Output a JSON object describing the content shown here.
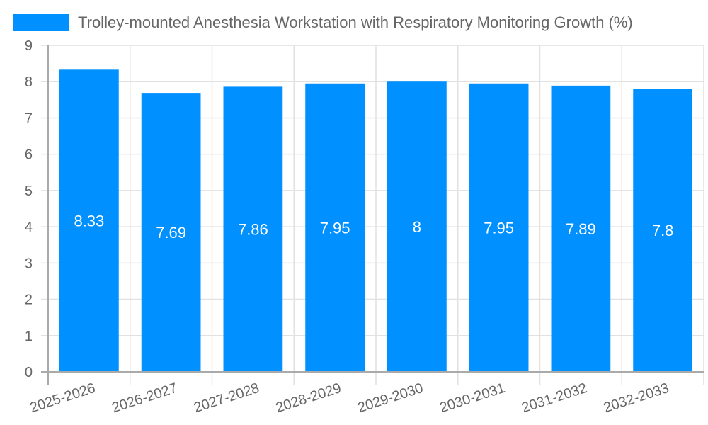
{
  "legend": {
    "label": "Trolley-mounted Anesthesia Workstation with Respiratory Monitoring Growth (%)",
    "color": "#0090ff"
  },
  "chart_data": {
    "type": "bar",
    "title": "",
    "categories": [
      "2025-2026",
      "2026-2027",
      "2027-2028",
      "2028-2029",
      "2029-2030",
      "2030-2031",
      "2031-2032",
      "2032-2033"
    ],
    "series": [
      {
        "name": "Trolley-mounted Anesthesia Workstation with Respiratory Monitoring Growth (%)",
        "values": [
          8.33,
          7.69,
          7.86,
          7.95,
          8,
          7.95,
          7.89,
          7.8
        ],
        "labels": [
          "8.33",
          "7.69",
          "7.86",
          "7.95",
          "8",
          "7.95",
          "7.89",
          "7.8"
        ],
        "color": "#0090ff"
      }
    ],
    "xlabel": "",
    "ylabel": "",
    "ylim": [
      0,
      9
    ],
    "yticks": [
      "0",
      "1",
      "2",
      "3",
      "4",
      "5",
      "6",
      "7",
      "8",
      "9"
    ],
    "grid": true,
    "legend_position": "top"
  }
}
